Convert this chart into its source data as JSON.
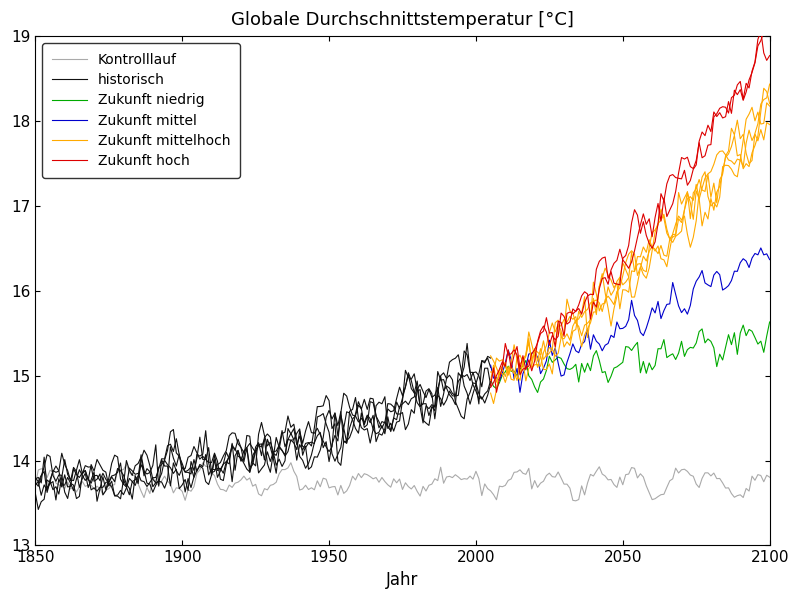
{
  "title": "Globale Durchschnittstemperatur [°C]",
  "xlabel": "Jahr",
  "xlim": [
    1850,
    2100
  ],
  "ylim": [
    13,
    19
  ],
  "yticks": [
    13,
    14,
    15,
    16,
    17,
    18,
    19
  ],
  "xticks": [
    1850,
    1900,
    1950,
    2000,
    2050,
    2100
  ],
  "legend_labels": [
    "Kontrolllauf",
    "historisch",
    "Zukunft niedrig",
    "Zukunft mittel",
    "Zukunft mittelhoch",
    "Zukunft hoch"
  ],
  "colors": {
    "kontrolllauf": "#aaaaaa",
    "historisch": "#111111",
    "niedrig": "#00aa00",
    "mittel": "#0000cc",
    "mittelhoch": "#ffaa00",
    "hoch": "#dd0000"
  },
  "n_historisch": 5,
  "n_niedrig": 1,
  "n_mittel": 1,
  "n_mittelhoch": 4,
  "n_hoch": 2,
  "hist_start": 1850,
  "hist_end": 2005,
  "future_start": 2005,
  "future_end": 2100,
  "base_temp": 13.75,
  "lw": 0.8,
  "figsize": [
    8.0,
    6.0
  ],
  "dpi": 100,
  "ends": {
    "niedrig": 15.5,
    "mittel": 16.5,
    "mittelhoch": 18.1,
    "hoch": 19.0
  }
}
